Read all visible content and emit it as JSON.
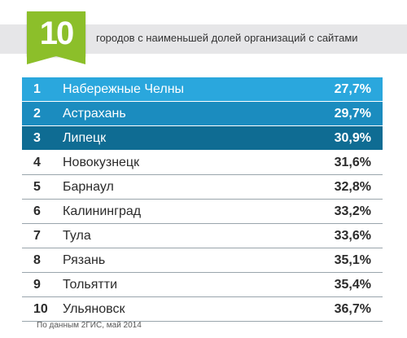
{
  "header": {
    "badge_number": "10",
    "title": "городов с наименьшей долей организаций с сайтами"
  },
  "colors": {
    "badge": "#8cbf2a",
    "header_band": "#e6e6e8",
    "highlight_rows": [
      "#2aa7dd",
      "#1b8cbf",
      "#0f6c93"
    ]
  },
  "chart_data": {
    "type": "table",
    "columns": [
      "rank",
      "city",
      "share"
    ],
    "rows": [
      {
        "rank": "1",
        "city": "Набережные Челны",
        "share": "27,7%"
      },
      {
        "rank": "2",
        "city": "Астрахань",
        "share": "29,7%"
      },
      {
        "rank": "3",
        "city": "Липецк",
        "share": "30,9%"
      },
      {
        "rank": "4",
        "city": "Новокузнецк",
        "share": "31,6%"
      },
      {
        "rank": "5",
        "city": "Барнаул",
        "share": "32,8%"
      },
      {
        "rank": "6",
        "city": "Калининград",
        "share": "33,2%"
      },
      {
        "rank": "7",
        "city": "Тула",
        "share": "33,6%"
      },
      {
        "rank": "8",
        "city": "Рязань",
        "share": "35,1%"
      },
      {
        "rank": "9",
        "city": "Тольятти",
        "share": "35,4%"
      },
      {
        "rank": "10",
        "city": "Ульяновск",
        "share": "36,7%"
      }
    ]
  },
  "footer": {
    "source": "По данным 2ГИС, май 2014"
  }
}
